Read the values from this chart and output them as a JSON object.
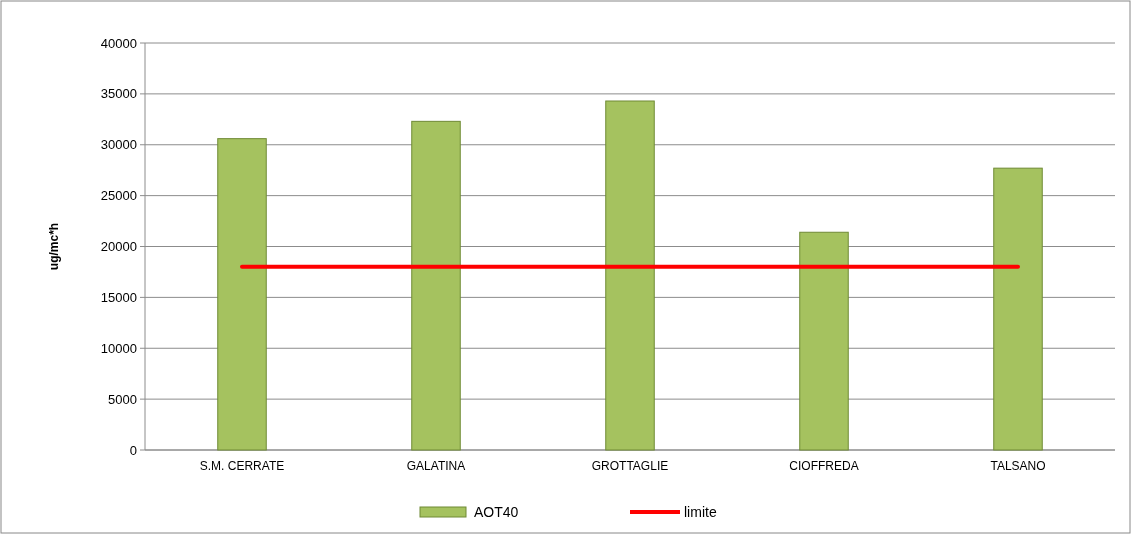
{
  "chart_data": {
    "type": "bar",
    "ylabel": "ug/mc*h",
    "categories": [
      "S.M. CERRATE",
      "GALATINA",
      "GROTTAGLIE",
      "CIOFFREDA",
      "TALSANO"
    ],
    "series": [
      {
        "name": "AOT40",
        "color": "#a5c25f",
        "values": [
          30600,
          32300,
          34300,
          21400,
          27700
        ]
      },
      {
        "name": "limite",
        "type": "line",
        "color": "#ff0000",
        "values": [
          18000,
          18000,
          18000,
          18000,
          18000
        ]
      }
    ],
    "ylim": [
      0,
      40000
    ],
    "yticks": [
      0,
      5000,
      10000,
      15000,
      20000,
      25000,
      30000,
      35000,
      40000
    ],
    "grid": "y",
    "legend": "bottom"
  }
}
